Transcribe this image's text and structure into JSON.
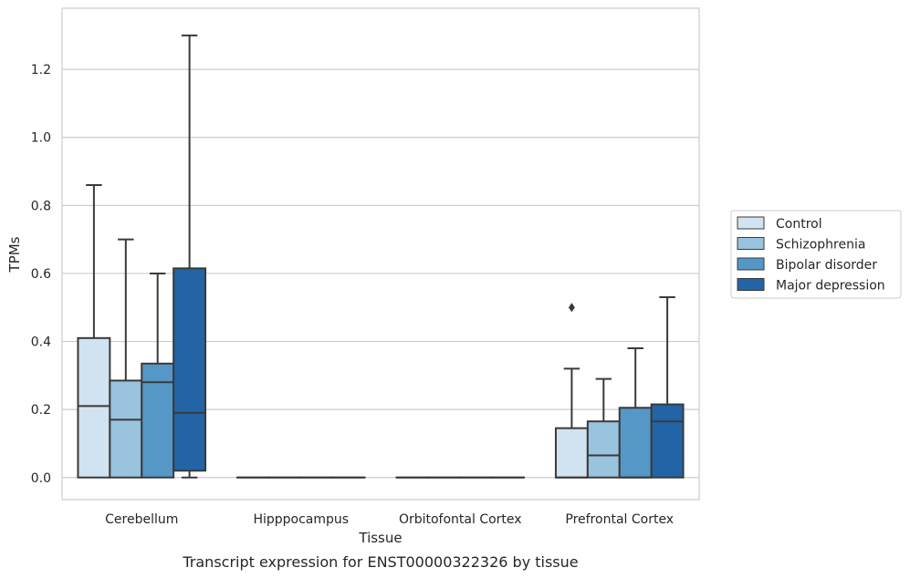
{
  "caption": "Transcript expression for ENST00000322326 by tissue",
  "chart_data": {
    "type": "boxplot",
    "xlabel": "Tissue",
    "ylabel": "TPMs",
    "ylim": [
      -0.065,
      1.38
    ],
    "yticks": [
      "0.0",
      "0.2",
      "0.4",
      "0.6",
      "0.8",
      "1.0",
      "1.2"
    ],
    "ytick_values": [
      0,
      0.2,
      0.4,
      0.6,
      0.8,
      1.0,
      1.2
    ],
    "grid": true,
    "legend_position": "right",
    "categories": [
      "Cerebellum",
      "Hipppocampus",
      "Orbitofontal Cortex",
      "Prefrontal Cortex"
    ],
    "series": [
      {
        "name": "Control",
        "color": "#d1e2f0",
        "boxes": [
          {
            "q1": 0,
            "median": 0.21,
            "q3": 0.41,
            "whislo": 0,
            "whishi": 0.86,
            "fliers": []
          },
          {
            "q1": 0,
            "median": 0,
            "q3": 0,
            "whislo": 0,
            "whishi": 0,
            "fliers": []
          },
          {
            "q1": 0,
            "median": 0,
            "q3": 0,
            "whislo": 0,
            "whishi": 0,
            "fliers": []
          },
          {
            "q1": 0,
            "median": 0,
            "q3": 0.145,
            "whislo": 0,
            "whishi": 0.32,
            "fliers": [
              0.5
            ]
          }
        ]
      },
      {
        "name": "Schizophrenia",
        "color": "#9ac3de",
        "boxes": [
          {
            "q1": 0,
            "median": 0.17,
            "q3": 0.285,
            "whislo": 0,
            "whishi": 0.7,
            "fliers": []
          },
          {
            "q1": 0,
            "median": 0,
            "q3": 0,
            "whislo": 0,
            "whishi": 0,
            "fliers": []
          },
          {
            "q1": 0,
            "median": 0,
            "q3": 0,
            "whislo": 0,
            "whishi": 0,
            "fliers": []
          },
          {
            "q1": 0,
            "median": 0.065,
            "q3": 0.165,
            "whislo": 0,
            "whishi": 0.29,
            "fliers": []
          }
        ]
      },
      {
        "name": "Bipolar disorder",
        "color": "#5597c6",
        "boxes": [
          {
            "q1": 0,
            "median": 0.28,
            "q3": 0.335,
            "whislo": 0,
            "whishi": 0.6,
            "fliers": []
          },
          {
            "q1": 0,
            "median": 0,
            "q3": 0,
            "whislo": 0,
            "whishi": 0,
            "fliers": []
          },
          {
            "q1": 0,
            "median": 0,
            "q3": 0,
            "whislo": 0,
            "whishi": 0,
            "fliers": []
          },
          {
            "q1": 0,
            "median": 0,
            "q3": 0.205,
            "whislo": 0,
            "whishi": 0.38,
            "fliers": []
          }
        ]
      },
      {
        "name": "Major depression",
        "color": "#2264a6",
        "boxes": [
          {
            "q1": 0.02,
            "median": 0.19,
            "q3": 0.615,
            "whislo": 0,
            "whishi": 1.3,
            "fliers": []
          },
          {
            "q1": 0,
            "median": 0,
            "q3": 0,
            "whislo": 0,
            "whishi": 0,
            "fliers": []
          },
          {
            "q1": 0,
            "median": 0,
            "q3": 0,
            "whislo": 0,
            "whishi": 0,
            "fliers": []
          },
          {
            "q1": 0,
            "median": 0.165,
            "q3": 0.215,
            "whislo": 0,
            "whishi": 0.53,
            "fliers": []
          }
        ]
      }
    ]
  }
}
